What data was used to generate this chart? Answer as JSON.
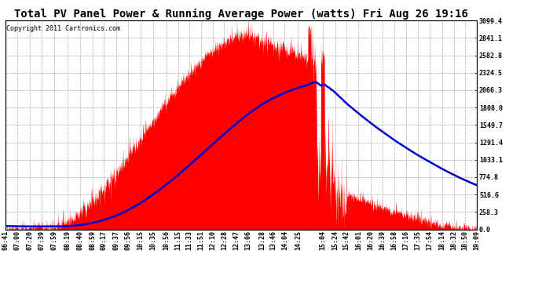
{
  "title": "Total PV Panel Power & Running Average Power (watts) Fri Aug 26 19:16",
  "copyright": "Copyright 2011 Cartronics.com",
  "bg_color": "#ffffff",
  "plot_bg_color": "#ffffff",
  "grid_color": "#aaaaaa",
  "fill_color": "#ff0000",
  "line_color": "#0000cc",
  "y_max": 3099.4,
  "y_min": 0.0,
  "y_ticks": [
    0.0,
    258.3,
    516.6,
    774.8,
    1033.1,
    1291.4,
    1549.7,
    1808.0,
    2066.3,
    2324.5,
    2582.8,
    2841.1,
    3099.4
  ],
  "x_labels": [
    "06:41",
    "07:00",
    "07:20",
    "07:39",
    "07:59",
    "08:19",
    "08:40",
    "08:59",
    "09:17",
    "09:37",
    "09:56",
    "10:15",
    "10:35",
    "10:56",
    "11:15",
    "11:33",
    "11:51",
    "12:10",
    "12:28",
    "12:47",
    "13:06",
    "13:28",
    "13:46",
    "14:04",
    "14:25",
    "15:04",
    "15:24",
    "15:42",
    "16:01",
    "16:20",
    "16:39",
    "16:58",
    "17:16",
    "17:35",
    "17:54",
    "18:14",
    "18:32",
    "18:50",
    "19:09"
  ],
  "title_fontsize": 10,
  "copyright_fontsize": 6,
  "tick_fontsize": 6
}
